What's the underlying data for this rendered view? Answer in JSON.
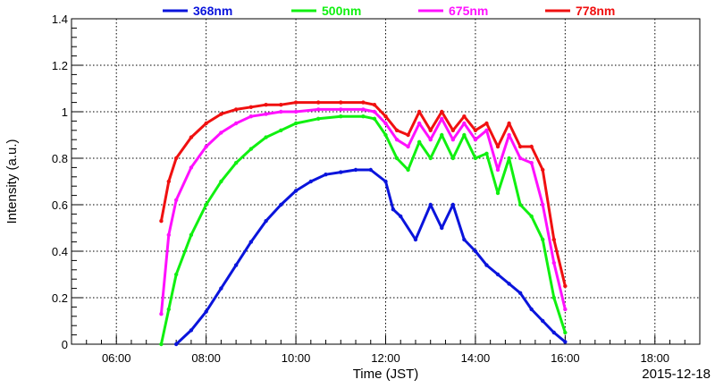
{
  "chart_data": {
    "type": "scatter",
    "xlabel": "Time (JST)",
    "ylabel": "Intensity (a.u.)",
    "date_label": "2015-12-18",
    "xlim": [
      "05:00",
      "19:00"
    ],
    "ylim": [
      0,
      1.4
    ],
    "x_ticks": [
      "06:00",
      "08:00",
      "10:00",
      "12:00",
      "14:00",
      "16:00",
      "18:00"
    ],
    "y_ticks": [
      "0",
      "0.2",
      "0.4",
      "0.6",
      "0.8",
      "1",
      "1.2",
      "1.4"
    ],
    "grid": true,
    "legend_position": "top",
    "series": [
      {
        "name": "368nm",
        "color": "#0a14dc",
        "x": [
          "07:20",
          "07:40",
          "08:00",
          "08:20",
          "08:40",
          "09:00",
          "09:20",
          "09:40",
          "10:00",
          "10:20",
          "10:40",
          "11:00",
          "11:20",
          "11:40",
          "12:00",
          "12:10",
          "12:20",
          "12:40",
          "13:00",
          "13:15",
          "13:30",
          "13:45",
          "14:00",
          "14:15",
          "14:30",
          "14:45",
          "15:00",
          "15:15",
          "15:30",
          "15:45",
          "16:00"
        ],
        "y": [
          0.0,
          0.06,
          0.14,
          0.24,
          0.34,
          0.44,
          0.53,
          0.6,
          0.66,
          0.7,
          0.73,
          0.74,
          0.75,
          0.75,
          0.7,
          0.58,
          0.55,
          0.45,
          0.6,
          0.5,
          0.6,
          0.45,
          0.4,
          0.34,
          0.3,
          0.26,
          0.22,
          0.15,
          0.1,
          0.05,
          0.01
        ]
      },
      {
        "name": "500nm",
        "color": "#10f010",
        "x": [
          "07:00",
          "07:10",
          "07:20",
          "07:40",
          "08:00",
          "08:20",
          "08:40",
          "09:00",
          "09:20",
          "09:40",
          "10:00",
          "10:30",
          "11:00",
          "11:30",
          "11:45",
          "12:00",
          "12:15",
          "12:30",
          "12:45",
          "13:00",
          "13:15",
          "13:30",
          "13:45",
          "14:00",
          "14:15",
          "14:30",
          "14:45",
          "15:00",
          "15:15",
          "15:30",
          "15:45",
          "16:00"
        ],
        "y": [
          0.0,
          0.15,
          0.3,
          0.47,
          0.6,
          0.7,
          0.78,
          0.84,
          0.89,
          0.92,
          0.95,
          0.97,
          0.98,
          0.98,
          0.97,
          0.9,
          0.8,
          0.75,
          0.87,
          0.8,
          0.9,
          0.8,
          0.9,
          0.8,
          0.82,
          0.65,
          0.8,
          0.6,
          0.55,
          0.45,
          0.2,
          0.05
        ]
      },
      {
        "name": "675nm",
        "color": "#ff10ff",
        "x": [
          "07:00",
          "07:10",
          "07:20",
          "07:40",
          "08:00",
          "08:20",
          "08:40",
          "09:00",
          "09:20",
          "09:40",
          "10:00",
          "10:30",
          "11:00",
          "11:30",
          "11:45",
          "12:00",
          "12:15",
          "12:30",
          "12:45",
          "13:00",
          "13:15",
          "13:30",
          "13:45",
          "14:00",
          "14:15",
          "14:30",
          "14:45",
          "15:00",
          "15:15",
          "15:30",
          "15:45",
          "16:00"
        ],
        "y": [
          0.13,
          0.47,
          0.62,
          0.76,
          0.85,
          0.91,
          0.95,
          0.98,
          0.99,
          1.0,
          1.0,
          1.01,
          1.01,
          1.01,
          1.0,
          0.95,
          0.88,
          0.85,
          0.95,
          0.88,
          0.97,
          0.88,
          0.95,
          0.88,
          0.92,
          0.75,
          0.9,
          0.8,
          0.78,
          0.6,
          0.35,
          0.15
        ]
      },
      {
        "name": "778nm",
        "color": "#f01010",
        "x": [
          "07:00",
          "07:10",
          "07:20",
          "07:40",
          "08:00",
          "08:20",
          "08:40",
          "09:00",
          "09:20",
          "09:40",
          "10:00",
          "10:30",
          "11:00",
          "11:30",
          "11:45",
          "12:00",
          "12:15",
          "12:30",
          "12:45",
          "13:00",
          "13:15",
          "13:30",
          "13:45",
          "14:00",
          "14:15",
          "14:30",
          "14:45",
          "15:00",
          "15:15",
          "15:30",
          "15:45",
          "16:00"
        ],
        "y": [
          0.53,
          0.7,
          0.8,
          0.89,
          0.95,
          0.99,
          1.01,
          1.02,
          1.03,
          1.03,
          1.04,
          1.04,
          1.04,
          1.04,
          1.03,
          0.98,
          0.92,
          0.9,
          1.0,
          0.92,
          1.0,
          0.92,
          0.98,
          0.92,
          0.95,
          0.85,
          0.95,
          0.85,
          0.85,
          0.75,
          0.45,
          0.25
        ]
      }
    ]
  }
}
